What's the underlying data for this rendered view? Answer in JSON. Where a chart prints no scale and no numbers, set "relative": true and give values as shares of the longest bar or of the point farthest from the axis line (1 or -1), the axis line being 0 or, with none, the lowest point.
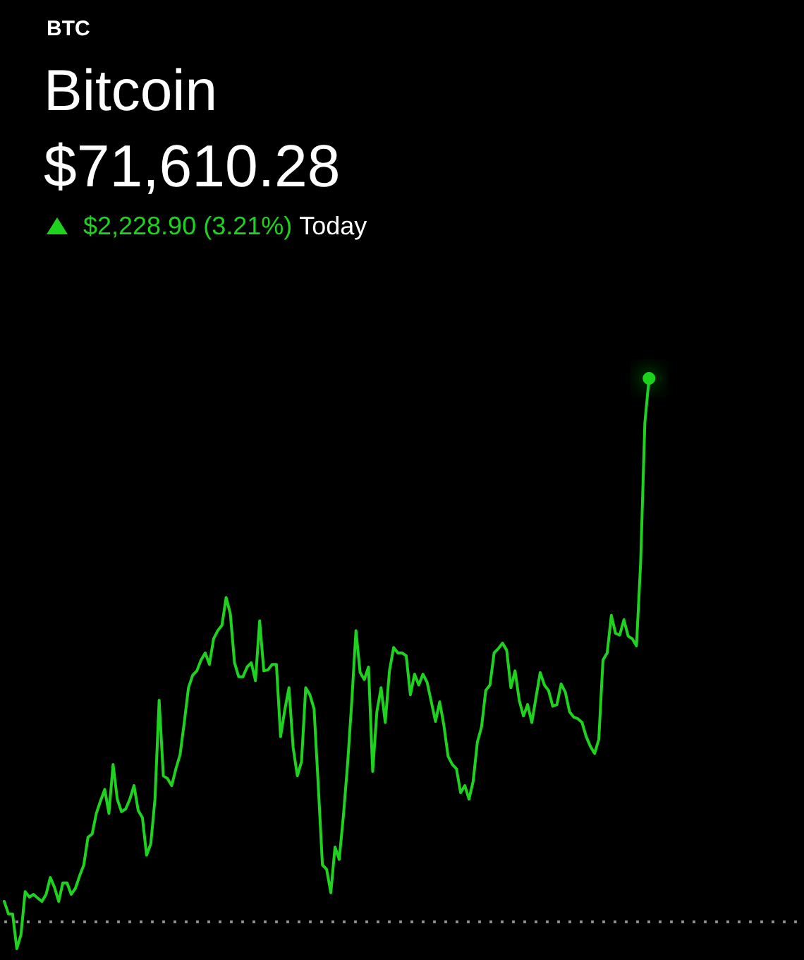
{
  "chart_data": {
    "type": "line",
    "title": "Bitcoin",
    "subtitle": "$71,610.28",
    "annotations": [
      "BTC",
      "$2,228.90 (3.21%)",
      "Today"
    ],
    "relative": true,
    "categories": [
      null,
      null,
      null,
      null,
      null,
      null,
      null,
      null,
      null,
      null,
      null,
      null,
      null,
      null,
      null,
      null,
      null,
      null,
      null,
      null,
      null,
      null,
      null,
      null,
      null,
      null,
      null,
      null,
      null,
      null,
      null,
      null,
      null,
      null,
      null,
      null,
      null,
      null,
      null,
      null,
      null,
      null,
      null,
      null,
      null,
      null,
      null,
      null,
      null,
      null,
      null,
      null,
      null,
      null,
      null,
      null,
      null,
      null,
      null,
      null,
      null,
      null,
      null,
      null,
      null,
      null,
      null,
      null,
      null,
      null,
      null,
      null,
      null,
      null,
      null,
      null,
      null,
      null,
      null,
      null,
      null,
      null,
      null,
      null,
      null,
      null,
      null,
      null,
      null,
      null,
      null,
      null,
      null,
      null,
      null,
      null,
      null,
      null,
      null,
      null,
      null,
      null,
      null,
      null,
      null,
      null,
      null,
      null,
      null,
      null,
      null,
      null,
      null,
      null,
      null,
      null,
      null,
      null,
      null,
      null,
      null,
      null,
      null,
      null,
      null,
      null,
      null,
      null,
      null,
      null,
      null,
      null,
      null,
      null,
      null,
      null,
      null,
      null,
      null,
      null,
      null,
      null,
      null,
      null,
      null,
      null,
      null,
      null,
      null,
      null,
      null,
      null,
      null,
      null,
      null
    ],
    "series": [
      {
        "color": "#1ed31e",
        "values": [
          0.038,
          0.015,
          0.015,
          -0.049,
          -0.023,
          0.056,
          0.046,
          0.051,
          0.044,
          0.038,
          0.051,
          0.082,
          0.064,
          0.038,
          0.072,
          0.072,
          0.051,
          0.062,
          0.085,
          0.105,
          0.156,
          0.162,
          0.2,
          0.223,
          0.244,
          0.2,
          0.29,
          0.226,
          0.203,
          0.208,
          0.226,
          0.251,
          0.205,
          0.192,
          0.123,
          0.144,
          0.226,
          0.408,
          0.269,
          0.264,
          0.251,
          0.282,
          0.308,
          0.367,
          0.431,
          0.454,
          0.462,
          0.482,
          0.495,
          0.474,
          0.521,
          0.536,
          0.546,
          0.597,
          0.567,
          0.477,
          0.451,
          0.451,
          0.469,
          0.477,
          0.444,
          0.554,
          0.462,
          0.464,
          0.474,
          0.474,
          0.341,
          0.39,
          0.431,
          0.321,
          0.269,
          0.295,
          0.431,
          0.418,
          0.392,
          0.251,
          0.105,
          0.097,
          0.054,
          0.138,
          0.115,
          0.195,
          0.29,
          0.405,
          0.536,
          0.459,
          0.446,
          0.469,
          0.277,
          0.387,
          0.431,
          0.367,
          0.462,
          0.505,
          0.495,
          0.495,
          0.49,
          0.418,
          0.456,
          0.436,
          0.456,
          0.441,
          0.405,
          0.369,
          0.405,
          0.362,
          0.305,
          0.29,
          0.282,
          0.238,
          0.251,
          0.226,
          0.259,
          0.331,
          0.359,
          0.426,
          0.436,
          0.495,
          0.503,
          0.513,
          0.5,
          0.431,
          0.462,
          0.408,
          0.379,
          0.4,
          0.367,
          0.413,
          0.459,
          0.436,
          0.426,
          0.397,
          0.4,
          0.438,
          0.423,
          0.387,
          0.377,
          0.374,
          0.367,
          0.341,
          0.323,
          0.31,
          0.336,
          0.482,
          0.495,
          0.564,
          0.531,
          0.528,
          0.556,
          0.526,
          0.521,
          0.508,
          0.662,
          0.918,
          1
        ]
      },
      {
        "color": "#1ed31e",
        "marker": "circle",
        "values": [
          null,
          null,
          null,
          null,
          null,
          null,
          null,
          null,
          null,
          null,
          null,
          null,
          null,
          null,
          null,
          null,
          null,
          null,
          null,
          null,
          null,
          null,
          null,
          null,
          null,
          null,
          null,
          null,
          null,
          null,
          null,
          null,
          null,
          null,
          null,
          null,
          null,
          null,
          null,
          null,
          null,
          null,
          null,
          null,
          null,
          null,
          null,
          null,
          null,
          null,
          null,
          null,
          null,
          null,
          null,
          null,
          null,
          null,
          null,
          null,
          null,
          null,
          null,
          null,
          null,
          null,
          null,
          null,
          null,
          null,
          null,
          null,
          null,
          null,
          null,
          null,
          null,
          null,
          null,
          null,
          null,
          null,
          null,
          null,
          null,
          null,
          null,
          null,
          null,
          null,
          null,
          null,
          null,
          null,
          null,
          null,
          null,
          null,
          null,
          null,
          null,
          null,
          null,
          null,
          null,
          null,
          null,
          null,
          null,
          null,
          null,
          null,
          null,
          null,
          null,
          null,
          null,
          null,
          null,
          null,
          null,
          null,
          null,
          null,
          null,
          null,
          null,
          null,
          null,
          null,
          null,
          null,
          null,
          null,
          null,
          null,
          null,
          null,
          null,
          null,
          null,
          null,
          null,
          null,
          null,
          null,
          null,
          null,
          null,
          null,
          null,
          null,
          null,
          null,
          1
        ]
      }
    ],
    "ref_lines": [
      {
        "axis": "y",
        "value": 0,
        "color": "#8c8c8c",
        "line_style": "dotted"
      }
    ]
  }
}
